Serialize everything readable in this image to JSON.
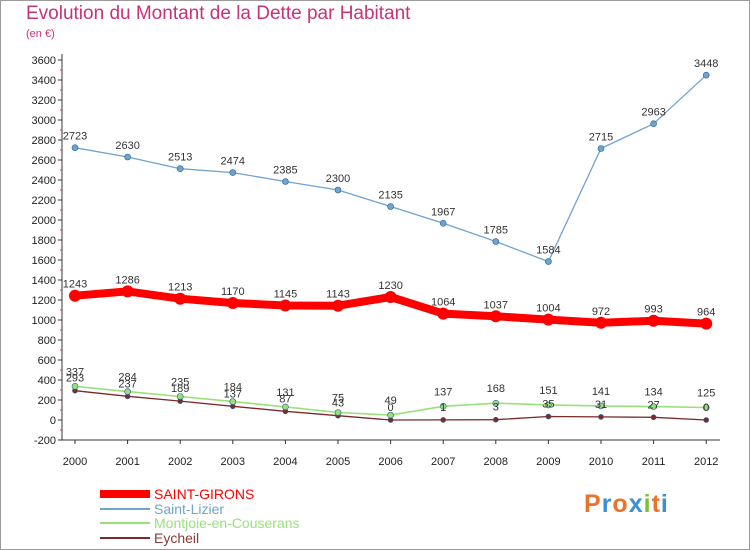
{
  "chart_data": {
    "type": "line",
    "title": "Evolution du Montant de la Dette par Habitant",
    "subtitle": "(en €)",
    "xlabel": "",
    "ylabel": "",
    "ylim": [
      -200,
      3600
    ],
    "yticks": [
      -200,
      0,
      200,
      400,
      600,
      800,
      1000,
      1200,
      1400,
      1600,
      1800,
      2000,
      2200,
      2400,
      2600,
      2800,
      3000,
      3200,
      3400,
      3600
    ],
    "categories": [
      "2000",
      "2001",
      "2002",
      "2003",
      "2004",
      "2005",
      "2006",
      "2007",
      "2008",
      "2009",
      "2010",
      "2011",
      "2012"
    ],
    "grid": false,
    "legend_position": "bottom-left",
    "series": [
      {
        "name": "SAINT-GIRONS",
        "color": "#ff0000",
        "values": [
          1243,
          1286,
          1213,
          1170,
          1145,
          1143,
          1230,
          1064,
          1037,
          1004,
          972,
          993,
          964
        ]
      },
      {
        "name": "Saint-Lizier",
        "color": "#6fa3d0",
        "values": [
          2723,
          2630,
          2513,
          2474,
          2385,
          2300,
          2135,
          1967,
          1785,
          1584,
          2715,
          2963,
          3448
        ]
      },
      {
        "name": "Montjoie-en-Couserans",
        "color": "#99e07a",
        "values": [
          337,
          284,
          235,
          184,
          131,
          75,
          49,
          137,
          168,
          151,
          141,
          134,
          125
        ]
      },
      {
        "name": "Eycheil",
        "color": "#7a2a2a",
        "values": [
          293,
          237,
          189,
          137,
          87,
          43,
          0,
          1,
          3,
          35,
          31,
          27,
          0
        ]
      }
    ]
  },
  "logo": {
    "text": "Proxiti"
  }
}
